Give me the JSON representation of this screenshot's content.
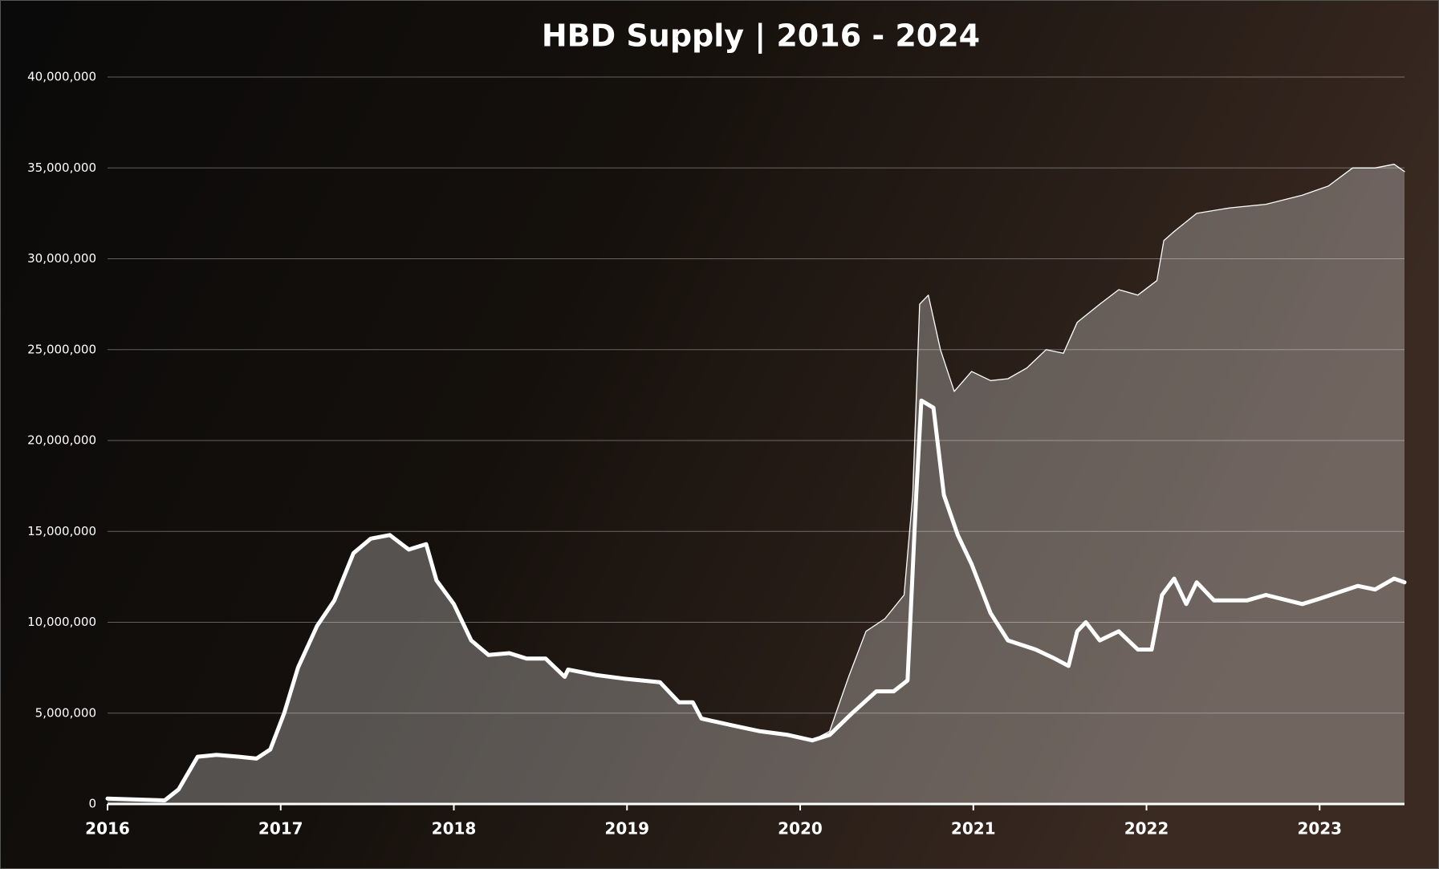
{
  "chart_data": {
    "type": "line",
    "title": "HBD Supply | 2016 - 2024",
    "xlim": [
      2016,
      2023.49
    ],
    "xticks": [
      2016,
      2017,
      2018,
      2019,
      2020,
      2021,
      2022,
      2023
    ],
    "ylim": [
      0,
      40000000
    ],
    "yticks": [
      0,
      {
        "value": 5000000,
        "label": "5,000,000"
      },
      {
        "value": 10000000,
        "label": "10,000,000"
      },
      {
        "value": 15000000,
        "label": "15,000,000"
      },
      {
        "value": 20000000,
        "label": "20,000,000"
      },
      {
        "value": 25000000,
        "label": "25,000,000"
      },
      {
        "value": 30000000,
        "label": "30,000,000"
      },
      {
        "value": 35000000,
        "label": "35,000,000"
      },
      {
        "value": 40000000,
        "label": "40,000,000"
      }
    ],
    "grid": true,
    "series": [
      {
        "color": "#ffffff",
        "width": 1.3,
        "fill": true,
        "x": [
          2016,
          2016.33,
          2016.41,
          2016.52,
          2016.63,
          2016.76,
          2016.86,
          2016.94,
          2017.02,
          2017.1,
          2017.21,
          2017.31,
          2017.42,
          2017.52,
          2017.63,
          2017.74,
          2017.84,
          2017.9,
          2018.0,
          2018.1,
          2018.2,
          2018.32,
          2018.42,
          2018.53,
          2018.64,
          2018.66,
          2018.82,
          2018.98,
          2019.19,
          2019.3,
          2019.38,
          2019.43,
          2019.62,
          2019.77,
          2019.93,
          2020.07,
          2020.17,
          2020.28,
          2020.38,
          2020.49,
          2020.6,
          2020.65,
          2020.69,
          2020.74,
          2020.81,
          2020.89,
          2020.99,
          2021.1,
          2021.2,
          2021.31,
          2021.42,
          2021.52,
          2021.6,
          2021.73,
          2021.84,
          2021.95,
          2022.06,
          2022.1,
          2022.16,
          2022.29,
          2022.48,
          2022.69,
          2022.9,
          2023.05,
          2023.19,
          2023.32,
          2023.43,
          2023.49
        ],
        "values": [
          300000,
          200000,
          800000,
          2600000,
          2700000,
          2600000,
          2500000,
          3000000,
          5000000,
          7500000,
          9800000,
          11200000,
          13800000,
          14600000,
          14800000,
          14000000,
          14300000,
          12300000,
          11000000,
          9000000,
          8200000,
          8300000,
          8000000,
          8000000,
          7000000,
          7400000,
          7100000,
          6900000,
          6700000,
          5600000,
          5600000,
          4700000,
          4300000,
          4000000,
          3800000,
          3500000,
          4000000,
          7000000,
          9500000,
          10200000,
          11500000,
          17000000,
          27500000,
          28000000,
          25000000,
          22700000,
          23800000,
          23300000,
          23400000,
          24000000,
          25000000,
          24800000,
          26500000,
          27500000,
          28300000,
          28000000,
          28800000,
          31000000,
          31500000,
          32500000,
          32800000,
          33000000,
          33500000,
          34000000,
          35000000,
          35000000,
          35200000,
          34800000
        ]
      },
      {
        "color": "#ffffff",
        "width": 5,
        "fill": false,
        "x": [
          2016,
          2016.33,
          2016.41,
          2016.52,
          2016.63,
          2016.76,
          2016.86,
          2016.94,
          2017.02,
          2017.1,
          2017.21,
          2017.31,
          2017.42,
          2017.52,
          2017.63,
          2017.74,
          2017.84,
          2017.9,
          2018.0,
          2018.1,
          2018.2,
          2018.32,
          2018.42,
          2018.53,
          2018.64,
          2018.66,
          2018.82,
          2018.98,
          2019.19,
          2019.3,
          2019.38,
          2019.43,
          2019.62,
          2019.77,
          2019.93,
          2020.07,
          2020.17,
          2020.3,
          2020.44,
          2020.54,
          2020.62,
          2020.67,
          2020.7,
          2020.77,
          2020.83,
          2020.91,
          2020.99,
          2021.1,
          2021.2,
          2021.36,
          2021.47,
          2021.55,
          2021.6,
          2021.65,
          2021.73,
          2021.84,
          2021.95,
          2022.03,
          2022.09,
          2022.16,
          2022.23,
          2022.29,
          2022.39,
          2022.58,
          2022.69,
          2022.9,
          2023.0,
          2023.22,
          2023.32,
          2023.43,
          2023.49
        ],
        "values": [
          300000,
          200000,
          800000,
          2600000,
          2700000,
          2600000,
          2500000,
          3000000,
          5000000,
          7500000,
          9800000,
          11200000,
          13800000,
          14600000,
          14800000,
          14000000,
          14300000,
          12300000,
          11000000,
          9000000,
          8200000,
          8300000,
          8000000,
          8000000,
          7000000,
          7400000,
          7100000,
          6900000,
          6700000,
          5600000,
          5600000,
          4700000,
          4300000,
          4000000,
          3800000,
          3500000,
          3800000,
          5000000,
          6200000,
          6200000,
          6800000,
          17000000,
          22200000,
          21800000,
          17000000,
          14800000,
          13200000,
          10500000,
          9000000,
          8500000,
          8000000,
          7600000,
          9500000,
          10000000,
          9000000,
          9500000,
          8500000,
          8500000,
          11500000,
          12400000,
          11000000,
          12200000,
          11200000,
          11200000,
          11500000,
          11000000,
          11300000,
          12000000,
          11800000,
          12400000,
          12200000
        ]
      }
    ]
  }
}
